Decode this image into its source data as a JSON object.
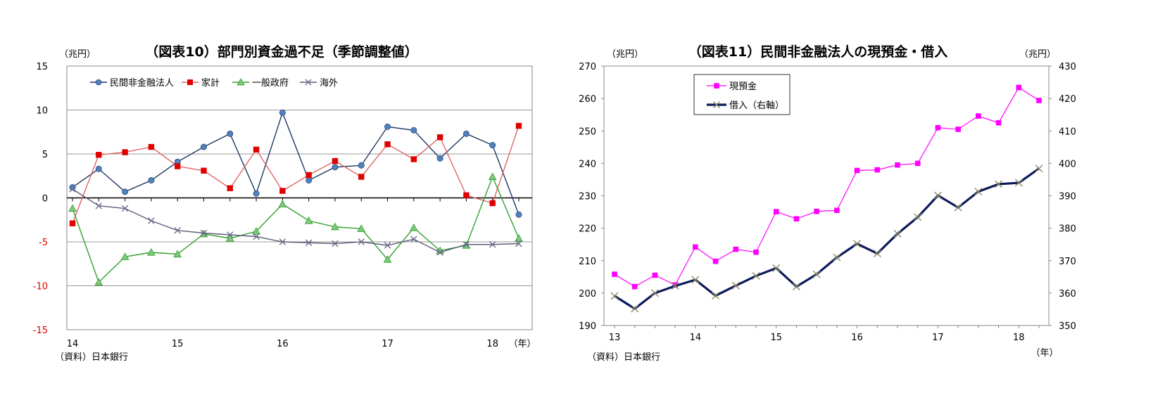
{
  "chart_data": [
    {
      "type": "line",
      "title": "（図表10）部門別資金過不足（季節調整値）",
      "unit_label": "（兆円）",
      "source": "（資料）日本銀行",
      "x_unit_label": "（年）",
      "x": [
        14.0,
        14.25,
        14.5,
        14.75,
        15.0,
        15.25,
        15.5,
        15.75,
        16.0,
        16.25,
        16.5,
        16.75,
        17.0,
        17.25,
        17.5,
        17.75,
        18.0,
        18.25
      ],
      "x_ticks": [
        "14",
        "15",
        "16",
        "17",
        "18"
      ],
      "ylim": [
        -15,
        15
      ],
      "y_ticks": [
        "15",
        "10",
        "5",
        "0",
        "-5",
        "-10",
        "-15"
      ],
      "grid": true,
      "legend_position": "top-left",
      "series": [
        {
          "name": "民間非金融法人",
          "color": "#1f3864",
          "marker": "circle",
          "marker_color": "#4f81bd",
          "values": [
            1.2,
            3.3,
            0.7,
            2.0,
            4.1,
            5.8,
            7.3,
            0.5,
            9.7,
            2.0,
            3.5,
            3.7,
            8.1,
            7.7,
            4.5,
            7.3,
            6.0,
            -1.9
          ]
        },
        {
          "name": "家計",
          "color": "#e06666",
          "marker": "square",
          "marker_color": "#e00000",
          "values": [
            -2.9,
            4.9,
            5.2,
            5.8,
            3.6,
            3.1,
            1.1,
            5.5,
            0.8,
            2.6,
            4.2,
            2.4,
            6.1,
            4.4,
            6.9,
            0.3,
            -0.6,
            8.2
          ]
        },
        {
          "name": "一般政府",
          "color": "#33a02c",
          "marker": "triangle",
          "marker_color": "#7ec87e",
          "values": [
            -1.2,
            -9.6,
            -6.7,
            -6.2,
            -6.4,
            -4.1,
            -4.6,
            -3.8,
            -0.7,
            -2.6,
            -3.3,
            -3.5,
            -7.0,
            -3.4,
            -6.0,
            -5.4,
            2.4,
            -4.6
          ]
        },
        {
          "name": "海外",
          "color": "#5c5c7a",
          "marker": "x",
          "marker_color": "#6b6b8a",
          "values": [
            1.0,
            -0.9,
            -1.2,
            -2.6,
            -3.7,
            -4.0,
            -4.2,
            -4.4,
            -5.0,
            -5.1,
            -5.2,
            -5.0,
            -5.4,
            -4.7,
            -6.2,
            -5.3,
            -5.3,
            -5.2
          ]
        }
      ]
    },
    {
      "type": "line",
      "title": "（図表11）民間非金融法人の現預金・借入",
      "unit_label_left": "（兆円）",
      "unit_label_right": "（兆円）",
      "source": "（資料）日本銀行",
      "x_unit_label": "（年）",
      "x": [
        13.0,
        13.25,
        13.5,
        13.75,
        14.0,
        14.25,
        14.5,
        14.75,
        15.0,
        15.25,
        15.5,
        15.75,
        16.0,
        16.25,
        16.5,
        16.75,
        17.0,
        17.25,
        17.5,
        17.75,
        18.0,
        18.25
      ],
      "x_ticks": [
        "13",
        "14",
        "15",
        "16",
        "17",
        "18"
      ],
      "ylim_left": [
        190,
        270
      ],
      "y_ticks_left": [
        "270",
        "260",
        "250",
        "240",
        "230",
        "220",
        "210",
        "200",
        "190"
      ],
      "ylim_right": [
        350,
        430
      ],
      "y_ticks_right": [
        "430",
        "420",
        "410",
        "400",
        "390",
        "380",
        "370",
        "360",
        "350"
      ],
      "grid": false,
      "legend_position": "top-left",
      "series": [
        {
          "name": "現預金",
          "axis": "left",
          "color": "#ff00ff",
          "marker": "square",
          "marker_color": "#ff00ff",
          "values": [
            205.8,
            202.0,
            205.5,
            202.5,
            214.2,
            209.8,
            213.5,
            212.6,
            225.1,
            222.9,
            225.2,
            225.5,
            237.8,
            238.0,
            239.5,
            240.0,
            251.0,
            250.5,
            254.6,
            252.5,
            263.4,
            259.4
          ]
        },
        {
          "name": "借入（右軸）",
          "axis": "right",
          "color": "#0c1a5a",
          "marker": "x",
          "marker_color": "#8c8c60",
          "values": [
            359.1,
            355.2,
            360.0,
            362.2,
            364.1,
            359.2,
            362.3,
            365.3,
            367.7,
            362.0,
            365.8,
            371.0,
            375.2,
            372.2,
            378.3,
            383.4,
            390.1,
            386.4,
            391.3,
            393.6,
            394.0,
            398.4
          ]
        }
      ]
    }
  ]
}
